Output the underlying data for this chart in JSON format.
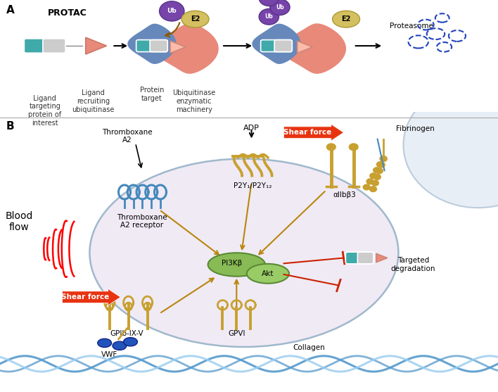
{
  "bg_color": "#ffffff",
  "label_A": "A",
  "label_B": "B",
  "protac_label": "PROTAC",
  "panel_A_labels": [
    "Ligand\ntargeting\nprotein of\ninterest",
    "Ligand\nrecruiting\nubiquitinase",
    "Protein\ntarget",
    "Ubiquitinase\nenzymatic\nmachinery",
    "Proteasome"
  ],
  "panel_B_labels": {
    "blood_flow": "Blood\nflow",
    "thromboxane_a2": "Thromboxane\nA2",
    "thromboxane_receptor": "Thromboxane\nA2 receptor",
    "adp": "ADP",
    "shear_force_top": "Shear force",
    "fibrinogen": "Fibrinogen",
    "p2y": "P2Y₁/P2Y₁₂",
    "aiib3": "αIIbβ3",
    "pi3kb": "PI3Kβ",
    "akt": "Akt",
    "targeted_deg": "Targeted\ndegradation",
    "shear_force_bot": "Shear force",
    "gpib": "GPIb-IX-V",
    "vwf": "VWF",
    "gpvi": "GPVI",
    "collagen": "Collagen"
  },
  "colors": {
    "salmon": "#E8897A",
    "blue_protein": "#6688BB",
    "purple": "#7744AA",
    "gold_e2": "#D4C060",
    "teal": "#40AAAA",
    "gray_pill": "#CCCCCC",
    "red_arrow": "#E83311",
    "dark_gold": "#B8860B",
    "cell_fill": "#F0EAF5",
    "cell_border": "#A0B8CC",
    "platelet_blue": "#4488BB",
    "collagen_blue": "#5599CC",
    "collagen_light": "#99CCEE",
    "dark_blue_blob": "#2244AA",
    "orange_tan": "#C8A030",
    "dashed_blue": "#2244BB",
    "brown_arrow": "#8B5A00",
    "red_inhibit": "#CC2200",
    "green_pi3k": "#88BB55",
    "green_akt": "#99CC66",
    "vessel_fill": "#E8EEF5",
    "vessel_border": "#BBCCDD"
  }
}
